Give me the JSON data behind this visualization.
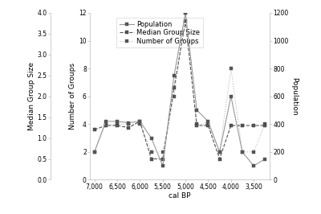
{
  "xlabel": "cal BP",
  "ylabel_nog": "Number of Groups",
  "ylabel_mgs": "Median Group Size",
  "ylabel_pop": "Population",
  "x": [
    7000,
    6750,
    6500,
    6250,
    6000,
    5750,
    5500,
    5250,
    5000,
    4750,
    4500,
    4250,
    4000,
    3750,
    3500,
    3250
  ],
  "pop": [
    200,
    420,
    420,
    410,
    420,
    300,
    100,
    750,
    1200,
    500,
    420,
    200,
    600,
    200,
    100,
    150
  ],
  "mgs": [
    1.2,
    1.3,
    1.3,
    1.25,
    1.4,
    0.5,
    0.5,
    2.2,
    3.8,
    1.3,
    1.3,
    0.5,
    1.3,
    1.3,
    1.3,
    1.3
  ],
  "nog": [
    2,
    4,
    4,
    4,
    4,
    2,
    2,
    6,
    12,
    4,
    4,
    2,
    8,
    2,
    2,
    4
  ],
  "pop_ylim": [
    0,
    1200
  ],
  "mgs_ylim": [
    0.0,
    4.0
  ],
  "nog_ylim": [
    0,
    12
  ],
  "xlim": [
    7100,
    3150
  ],
  "xticks": [
    7000,
    6500,
    6000,
    5500,
    5000,
    4500,
    4000,
    3500
  ],
  "xtick_labels": [
    "7,000",
    "6,500",
    "6,000",
    "5,500",
    "5,000",
    "4,500",
    "4,000",
    "3,500"
  ],
  "pop_yticks": [
    0,
    200,
    400,
    600,
    800,
    1000,
    1200
  ],
  "mgs_yticks": [
    0.0,
    0.5,
    1.0,
    1.5,
    2.0,
    2.5,
    3.0,
    3.5,
    4.0
  ],
  "nog_yticks": [
    0,
    2,
    4,
    6,
    8,
    10,
    12
  ],
  "legend_labels": [
    "Population",
    "Median Group Size",
    "Number of Groups"
  ],
  "color_pop": "#999999",
  "color_mgs": "#555555",
  "color_nog": "#bbbbbb",
  "marker_color": "#555555",
  "lw": 0.8,
  "ms": 2.5,
  "legend_fontsize": 6,
  "axis_fontsize": 6,
  "tick_fontsize": 5.5,
  "label_fontsize": 6.5
}
